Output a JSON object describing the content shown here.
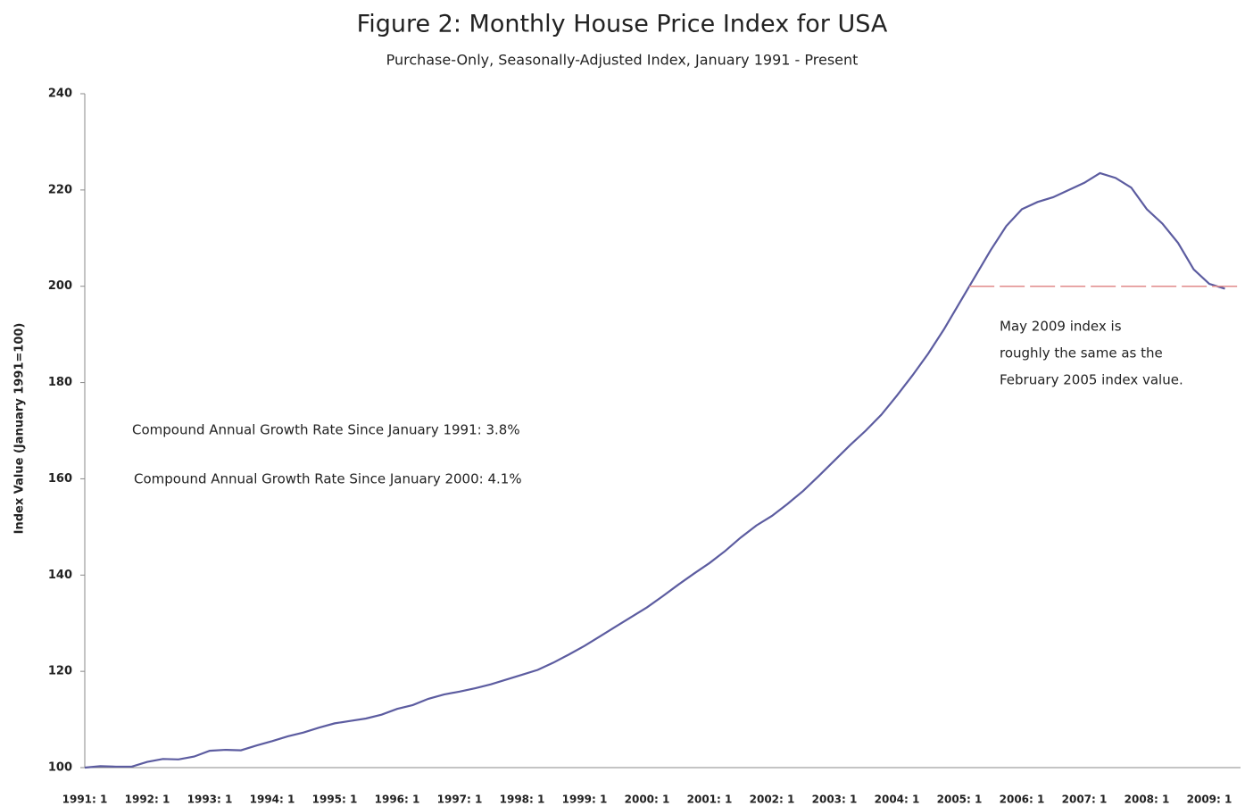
{
  "chart_data": {
    "type": "line",
    "title": "Figure 2: Monthly House Price Index for USA",
    "subtitle": "Purchase-Only, Seasonally-Adjusted Index, January 1991 - Present",
    "ylabel": "Index Value (January 1991=100)",
    "categories": [
      "1991: 1",
      null,
      null,
      null,
      "1992: 1",
      null,
      null,
      null,
      "1993: 1",
      null,
      null,
      null,
      "1994: 1",
      null,
      null,
      null,
      "1995: 1",
      null,
      null,
      null,
      "1996: 1",
      null,
      null,
      null,
      "1997: 1",
      null,
      null,
      null,
      "1998: 1",
      null,
      null,
      null,
      "1999: 1",
      null,
      null,
      null,
      "2000: 1",
      null,
      null,
      null,
      "2001: 1",
      null,
      null,
      null,
      "2002: 1",
      null,
      null,
      null,
      "2003: 1",
      null,
      null,
      null,
      "2004: 1",
      null,
      null,
      null,
      "2005: 1",
      null,
      null,
      null,
      "2006: 1",
      null,
      null,
      null,
      "2007: 1",
      null,
      null,
      null,
      "2008: 1",
      null,
      null,
      null,
      "2009: 1",
      null
    ],
    "series": [
      {
        "name": "Index",
        "color": "#5c5ca0",
        "values": [
          100,
          100.3,
          100.2,
          100.2,
          101.2,
          101.8,
          101.7,
          102.3,
          103.5,
          103.7,
          103.6,
          104.6,
          105.5,
          106.5,
          107.3,
          108.3,
          109.2,
          109.7,
          110.2,
          111,
          112.2,
          113,
          114.3,
          115.2,
          115.8,
          116.5,
          117.3,
          118.3,
          119.3,
          120.3,
          121.8,
          123.5,
          125.3,
          127.3,
          129.3,
          131.3,
          133.3,
          135.6,
          138,
          140.3,
          142.5,
          145,
          147.8,
          150.3,
          152.3,
          154.8,
          157.5,
          160.6,
          163.8,
          167,
          170,
          173.3,
          177.3,
          181.5,
          186,
          191,
          196.5,
          202,
          207.5,
          212.5,
          216,
          217.5,
          218.5,
          220,
          221.5,
          223.5,
          222.5,
          220.5,
          216,
          213,
          209,
          203.5,
          200.5,
          199.5
        ]
      }
    ],
    "reference_line": {
      "value": 200,
      "color": "#e08a8a"
    },
    "annotations": [
      "Compound Annual Growth Rate Since January 1991:  3.8%",
      "Compound Annual Growth Rate Since January 2000:  4.1%"
    ],
    "note": [
      "May 2009 index is",
      "roughly the same as the",
      "February 2005  index value."
    ],
    "ylim": [
      100,
      240
    ],
    "yticks": [
      100,
      120,
      140,
      160,
      180,
      200,
      220,
      240
    ],
    "grid": false
  }
}
